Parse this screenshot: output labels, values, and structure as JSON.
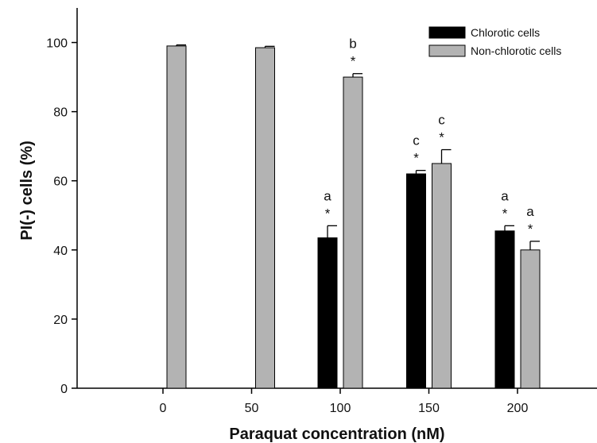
{
  "chart_data": {
    "type": "bar",
    "title": "",
    "xlabel": "Paraquat concentration (nM)",
    "ylabel": "PI(-) cells (%)",
    "ylim": [
      0,
      110
    ],
    "yticks": [
      0,
      20,
      40,
      60,
      80,
      100
    ],
    "categories": [
      "0",
      "50",
      "100",
      "150",
      "200"
    ],
    "legend_position": "top-right",
    "grid": false,
    "series": [
      {
        "name": "Chlorotic cells",
        "color": "#000000",
        "values": [
          null,
          null,
          43.5,
          62,
          45.5
        ],
        "errors": [
          null,
          null,
          3.5,
          1,
          1.5
        ],
        "letters": [
          "",
          "",
          "a",
          "c",
          "a"
        ],
        "stars": [
          "",
          "",
          "*",
          "*",
          "*"
        ]
      },
      {
        "name": "Non-chlorotic cells",
        "color": "#b3b3b3",
        "values": [
          99,
          98.5,
          90,
          65,
          40
        ],
        "errors": [
          0.3,
          0.4,
          1,
          4,
          2.5
        ],
        "letters": [
          "",
          "",
          "b",
          "c",
          "a"
        ],
        "stars": [
          "",
          "",
          "*",
          "*",
          "*"
        ]
      }
    ]
  }
}
